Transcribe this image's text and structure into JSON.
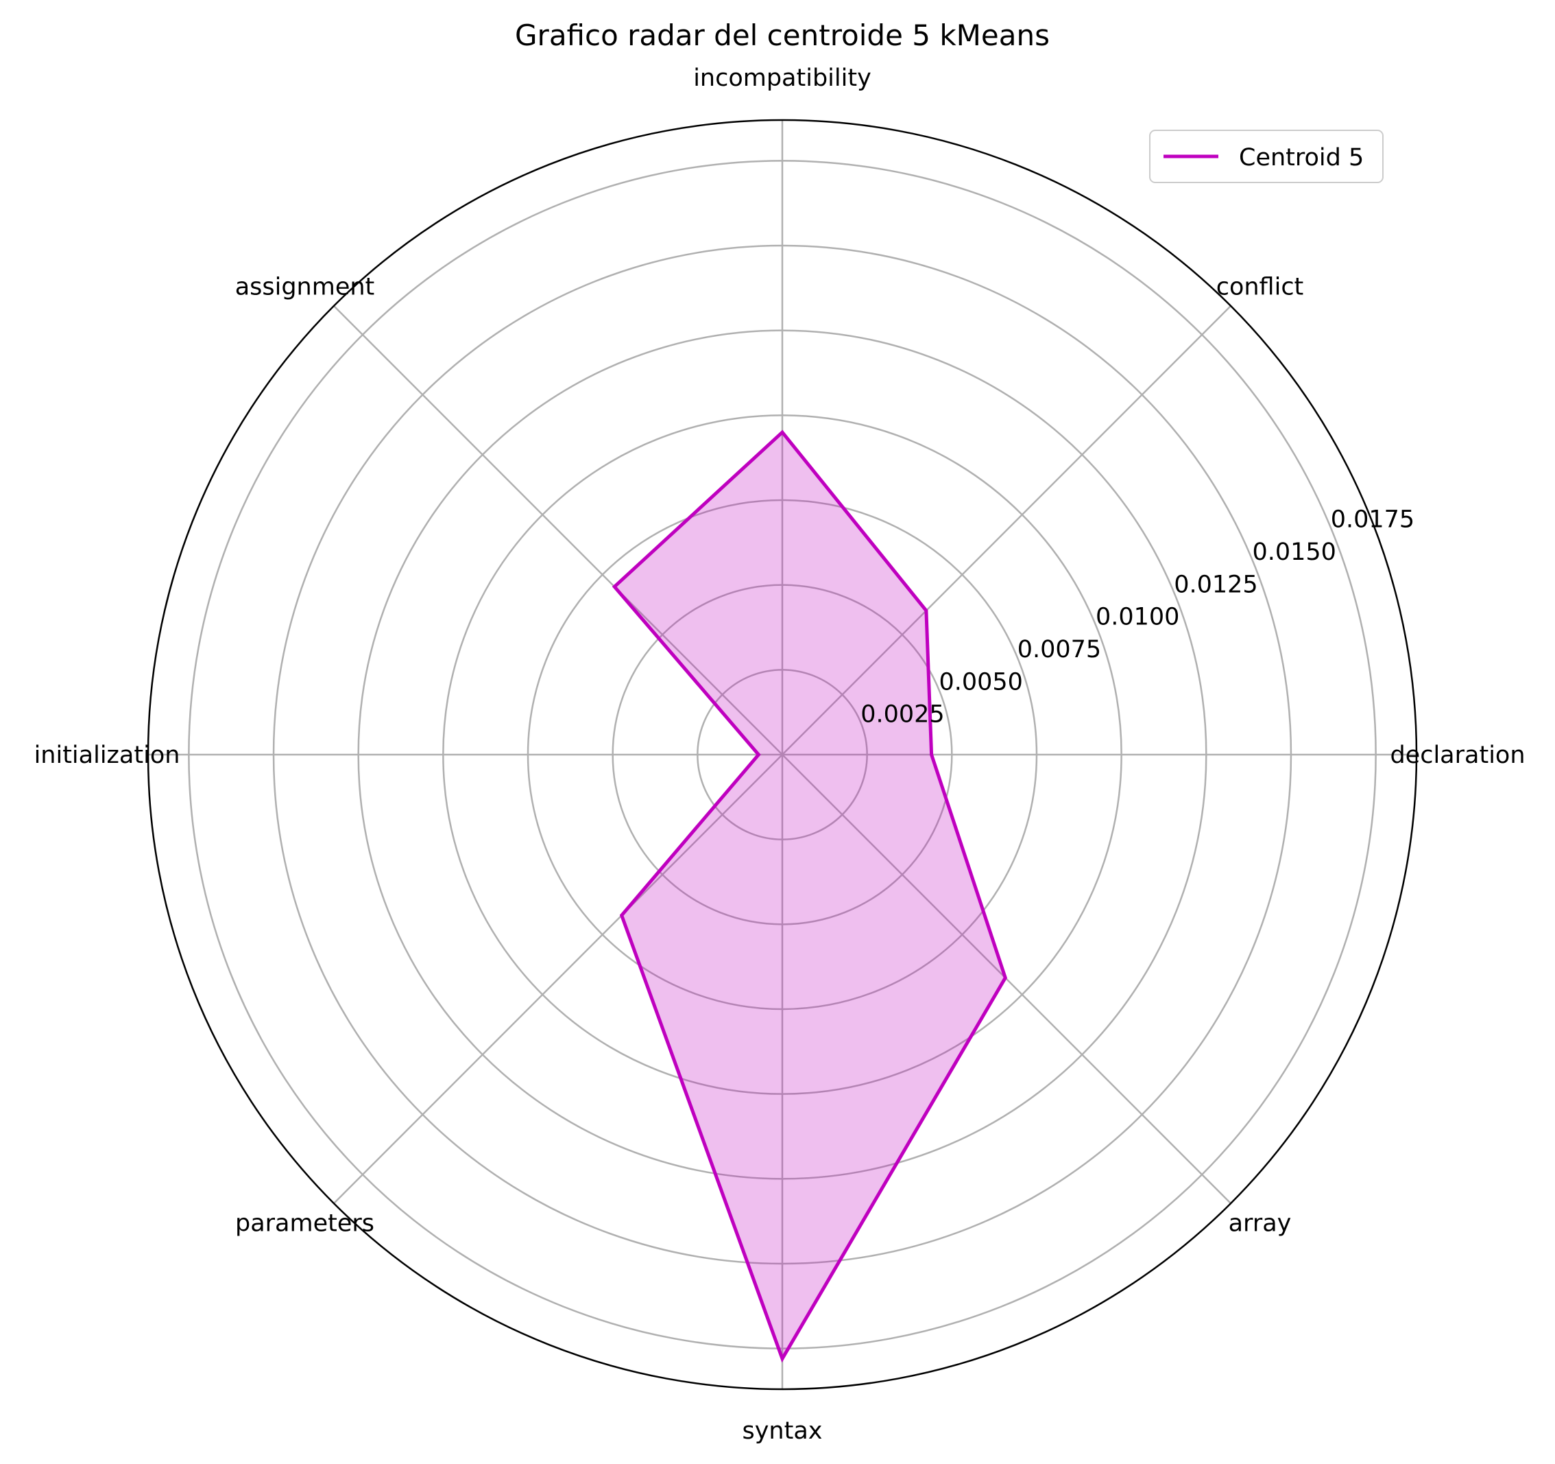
{
  "chart_data": {
    "type": "radar",
    "title": "Grafico radar del centroide 5 kMeans",
    "categories": [
      "declaration",
      "conflict",
      "incompatibility",
      "assignment",
      "initialization",
      "parameters",
      "syntax",
      "array"
    ],
    "series": [
      {
        "name": "Centroid 5",
        "values": [
          0.0044,
          0.006,
          0.0095,
          0.007,
          0.0007,
          0.0067,
          0.0178,
          0.0093
        ]
      }
    ],
    "radial_ticks": [
      0.0025,
      0.005,
      0.0075,
      0.01,
      0.0125,
      0.015,
      0.0175
    ],
    "radial_tick_labels": [
      "0.0025",
      "0.0050",
      "0.0075",
      "0.0100",
      "0.0125",
      "0.0150",
      "0.0175"
    ],
    "rlim": [
      0,
      0.0187
    ],
    "grid": true,
    "legend": {
      "position": "top-right"
    },
    "colors": {
      "line": "#bf00bf",
      "fill": "#bf00bf",
      "grid": "#b0b0b0",
      "frame": "#000000"
    }
  }
}
